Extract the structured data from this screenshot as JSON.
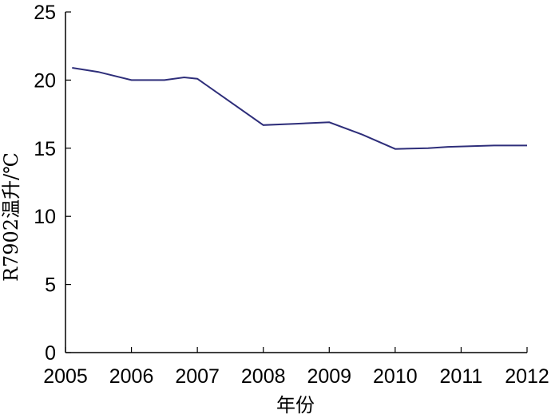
{
  "chart_data": {
    "type": "line",
    "title": "",
    "xlabel": "年份",
    "ylabel": "R7902温升/℃",
    "xlim": [
      2005,
      2012
    ],
    "ylim": [
      0,
      25
    ],
    "x_ticks": [
      "2005",
      "2006",
      "2007",
      "2008",
      "2009",
      "2010",
      "2011",
      "2012"
    ],
    "y_ticks": [
      "0",
      "5",
      "10",
      "15",
      "20",
      "25"
    ],
    "grid": false,
    "line_color": "#2e2e7a",
    "series": [
      {
        "x": [
          2005.1,
          2005.5,
          2006.0,
          2006.5,
          2006.8,
          2007.0,
          2008.0,
          2008.5,
          2009.0,
          2009.5,
          2010.0,
          2010.5,
          2010.8,
          2011.5,
          2012.0
        ],
        "y": [
          20.9,
          20.6,
          20.0,
          20.0,
          20.2,
          20.1,
          16.7,
          16.8,
          16.9,
          16.0,
          14.95,
          15.0,
          15.1,
          15.2,
          15.2
        ]
      }
    ]
  }
}
